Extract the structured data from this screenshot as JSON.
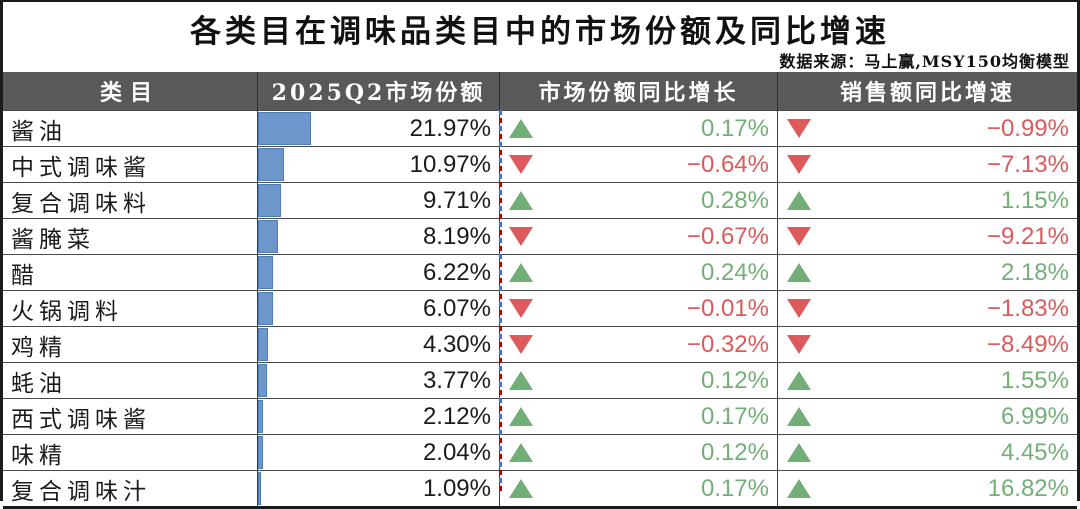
{
  "title": "各类目在调味品类目中的市场份额及同比增速",
  "source": "数据来源：马上赢,MSY150均衡模型",
  "colors": {
    "header_bg": "#595959",
    "header_text": "#ffffff",
    "bar_fill": "#6d97cb",
    "bar_border": "#4e7db5",
    "up_green": "#74af78",
    "down_red": "#dc5a5c",
    "pagebreak_blue": "#4472c4",
    "pagebreak_red": "#c00000"
  },
  "table": {
    "headers": [
      "类目",
      "2025Q2市场份额",
      "市场份额同比增长",
      "销售额同比增速"
    ],
    "rows": [
      {
        "category": "酱油",
        "share": "21.97%",
        "share_value": 21.97,
        "share_yoy": "0.17%",
        "share_yoy_dir": "up",
        "sales_yoy": "−0.99%",
        "sales_yoy_dir": "down"
      },
      {
        "category": "中式调味酱",
        "share": "10.97%",
        "share_value": 10.97,
        "share_yoy": "−0.64%",
        "share_yoy_dir": "down",
        "sales_yoy": "−7.13%",
        "sales_yoy_dir": "down"
      },
      {
        "category": "复合调味料",
        "share": "9.71%",
        "share_value": 9.71,
        "share_yoy": "0.28%",
        "share_yoy_dir": "up",
        "sales_yoy": "1.15%",
        "sales_yoy_dir": "up"
      },
      {
        "category": "酱腌菜",
        "share": "8.19%",
        "share_value": 8.19,
        "share_yoy": "−0.67%",
        "share_yoy_dir": "down",
        "sales_yoy": "−9.21%",
        "sales_yoy_dir": "down"
      },
      {
        "category": "醋",
        "share": "6.22%",
        "share_value": 6.22,
        "share_yoy": "0.24%",
        "share_yoy_dir": "up",
        "sales_yoy": "2.18%",
        "sales_yoy_dir": "up"
      },
      {
        "category": "火锅调料",
        "share": "6.07%",
        "share_value": 6.07,
        "share_yoy": "−0.01%",
        "share_yoy_dir": "down",
        "sales_yoy": "−1.83%",
        "sales_yoy_dir": "down"
      },
      {
        "category": "鸡精",
        "share": "4.30%",
        "share_value": 4.3,
        "share_yoy": "−0.32%",
        "share_yoy_dir": "down",
        "sales_yoy": "−8.49%",
        "sales_yoy_dir": "down"
      },
      {
        "category": "蚝油",
        "share": "3.77%",
        "share_value": 3.77,
        "share_yoy": "0.12%",
        "share_yoy_dir": "up",
        "sales_yoy": "1.55%",
        "sales_yoy_dir": "up"
      },
      {
        "category": "西式调味酱",
        "share": "2.12%",
        "share_value": 2.12,
        "share_yoy": "0.17%",
        "share_yoy_dir": "up",
        "sales_yoy": "6.99%",
        "sales_yoy_dir": "up"
      },
      {
        "category": "味精",
        "share": "2.04%",
        "share_value": 2.04,
        "share_yoy": "0.12%",
        "share_yoy_dir": "up",
        "sales_yoy": "4.45%",
        "sales_yoy_dir": "up"
      },
      {
        "category": "复合调味汁",
        "share": "1.09%",
        "share_value": 1.09,
        "share_yoy": "0.17%",
        "share_yoy_dir": "up",
        "sales_yoy": "16.82%",
        "sales_yoy_dir": "up"
      }
    ]
  },
  "chart_data": {
    "type": "table",
    "title": "各类目在调味品类目中的市场份额及同比增速",
    "source": "数据来源：马上赢,MSY150均衡模型",
    "columns": [
      "类目",
      "2025Q2市场份额",
      "市场份额同比增长",
      "销售额同比增速"
    ],
    "categories": [
      "酱油",
      "中式调味酱",
      "复合调味料",
      "酱腌菜",
      "醋",
      "火锅调料",
      "鸡精",
      "蚝油",
      "西式调味酱",
      "味精",
      "复合调味汁"
    ],
    "series": [
      {
        "name": "2025Q2市场份额",
        "unit": "%",
        "values": [
          21.97,
          10.97,
          9.71,
          8.19,
          6.22,
          6.07,
          4.3,
          3.77,
          2.12,
          2.04,
          1.09
        ]
      },
      {
        "name": "市场份额同比增长",
        "unit": "%",
        "values": [
          0.17,
          -0.64,
          0.28,
          -0.67,
          0.24,
          -0.01,
          -0.32,
          0.12,
          0.17,
          0.12,
          0.17
        ]
      },
      {
        "name": "销售额同比增速",
        "unit": "%",
        "values": [
          -0.99,
          -7.13,
          1.15,
          -9.21,
          2.18,
          -1.83,
          -8.49,
          1.55,
          6.99,
          4.45,
          16.82
        ]
      }
    ],
    "layout_hints": {
      "bar_column": "2025Q2市场份额",
      "bar_scale_max": 100,
      "up_color": "#74af78",
      "down_color": "#dc5a5c"
    }
  }
}
